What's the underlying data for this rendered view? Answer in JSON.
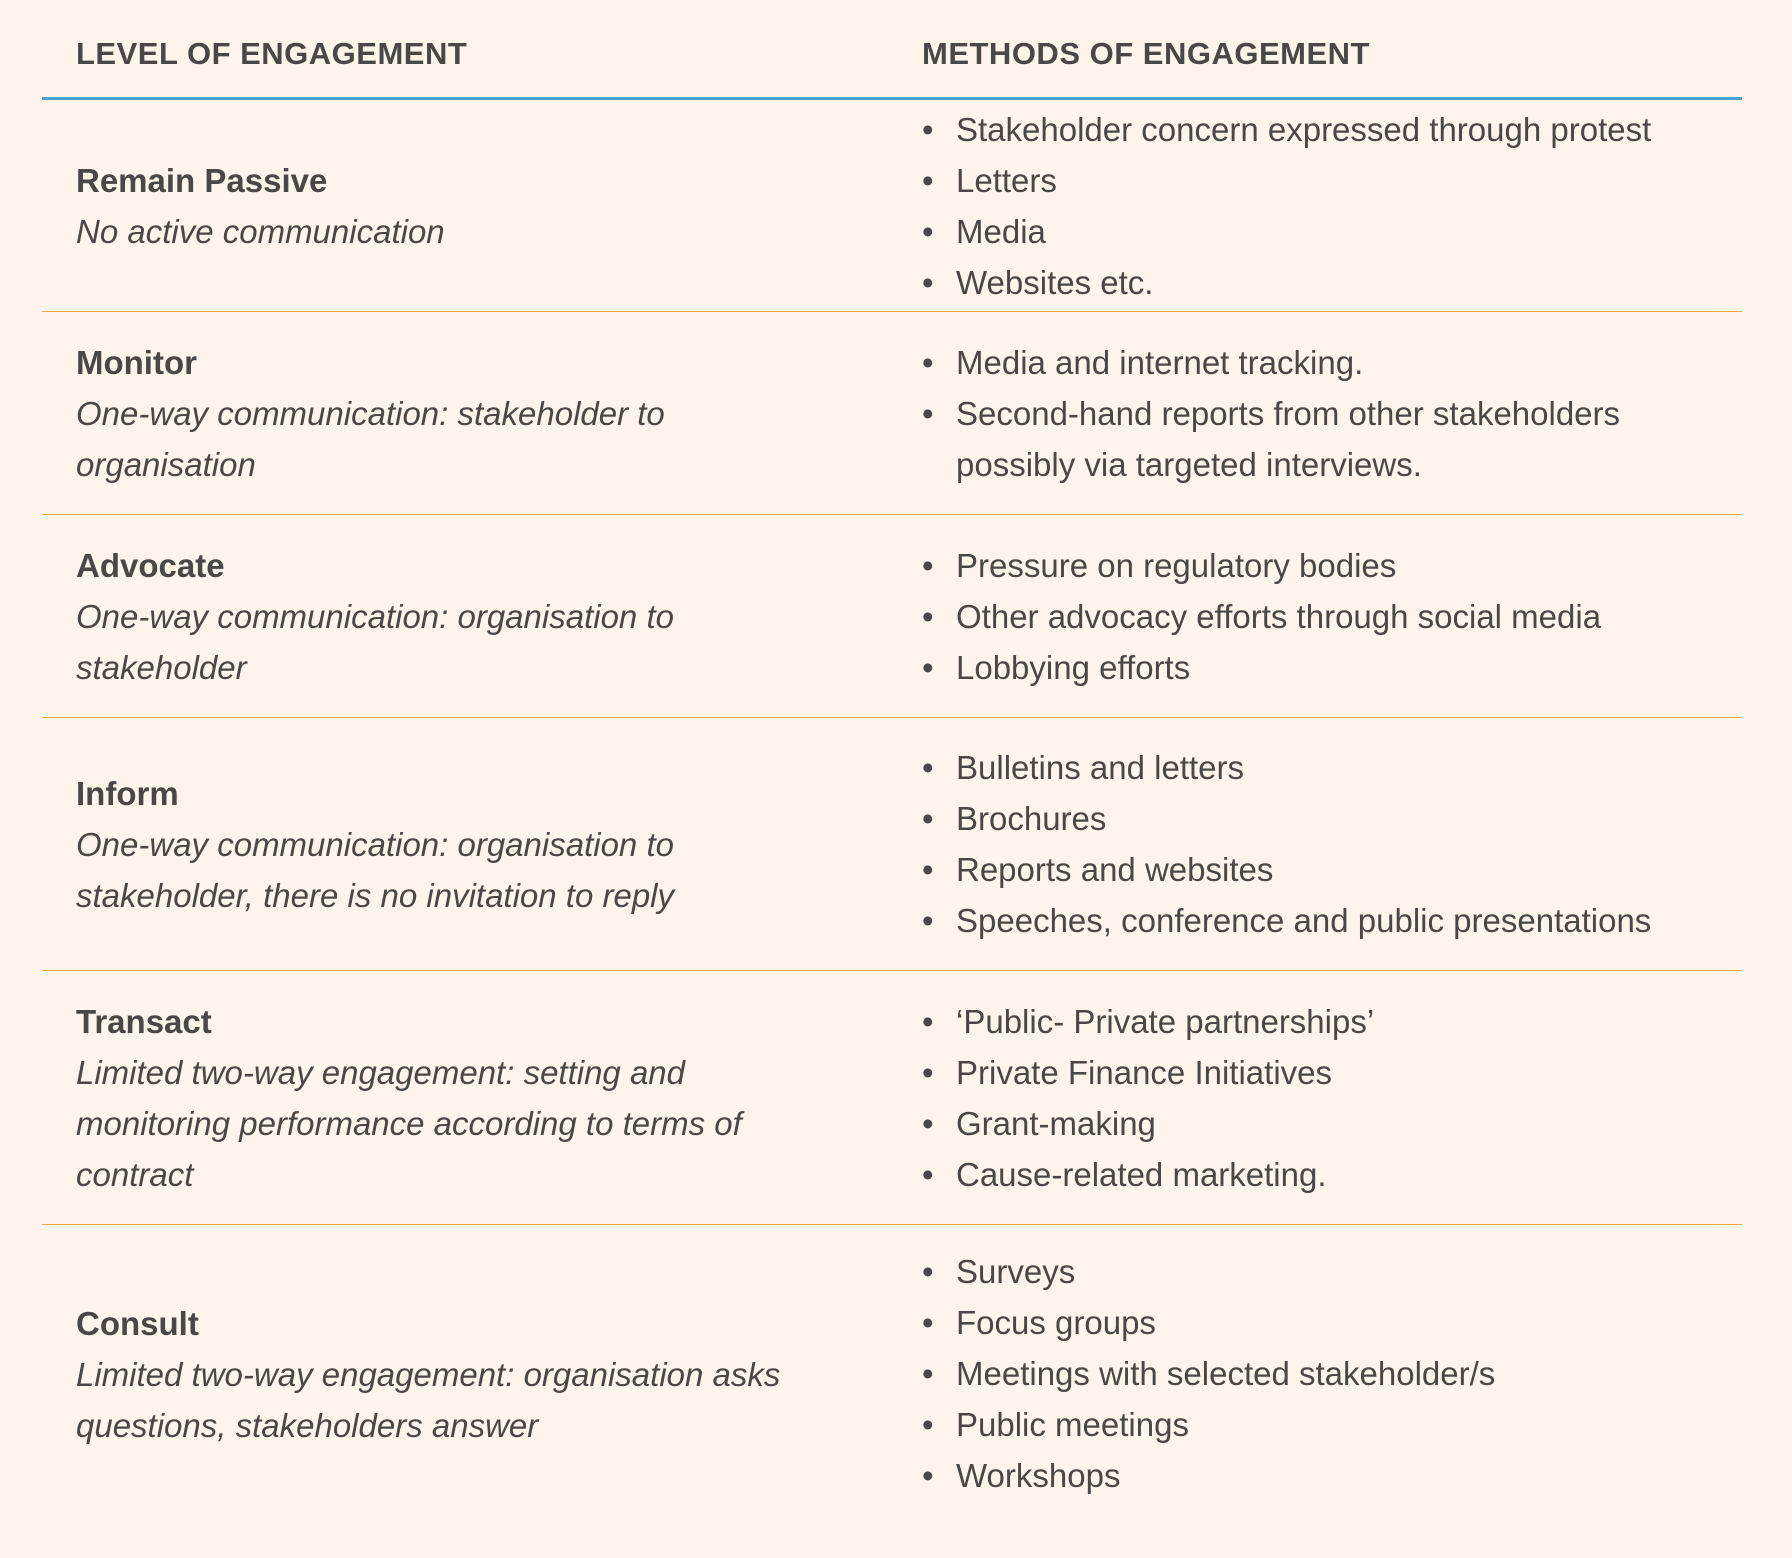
{
  "headers": {
    "level": "LEVEL OF ENGAGEMENT",
    "methods": "METHODS OF ENGAGEMENT"
  },
  "colors": {
    "background": "#fdf5eb",
    "header_rule": "#4aa3cf",
    "row_rule": "#e9a950",
    "text": "#4a4846"
  },
  "rows": [
    {
      "name": "Remain Passive",
      "description": "No active communication",
      "methods": [
        "Stakeholder concern expressed through protest",
        "Letters",
        "Media",
        "Websites etc."
      ]
    },
    {
      "name": "Monitor",
      "description": "One-way communication: stakeholder to organisation",
      "methods": [
        "Media and internet tracking.",
        "Second-hand reports from other stakeholders possibly via targeted interviews."
      ]
    },
    {
      "name": "Advocate",
      "description": "One-way communication: organisation to stakeholder",
      "methods": [
        "Pressure on regulatory bodies",
        "Other advocacy efforts through social media",
        "Lobbying efforts"
      ]
    },
    {
      "name": "Inform",
      "description": "One-way communication: organisation to stakeholder, there is no invitation to reply",
      "methods": [
        "Bulletins and letters",
        "Brochures",
        "Reports and websites",
        "Speeches, conference and public presentations"
      ]
    },
    {
      "name": "Transact",
      "description": "Limited two-way engagement: setting and monitoring performance according to terms of contract",
      "methods": [
        "‘Public- Private partnerships’",
        "Private Finance Initiatives",
        "Grant-making",
        "Cause-related marketing."
      ]
    },
    {
      "name": "Consult",
      "description": "Limited two-way engagement: organisation asks questions, stakeholders answer",
      "methods": [
        "Surveys",
        "Focus groups",
        "Meetings with selected stakeholder/s",
        "Public meetings",
        "Workshops"
      ]
    }
  ]
}
